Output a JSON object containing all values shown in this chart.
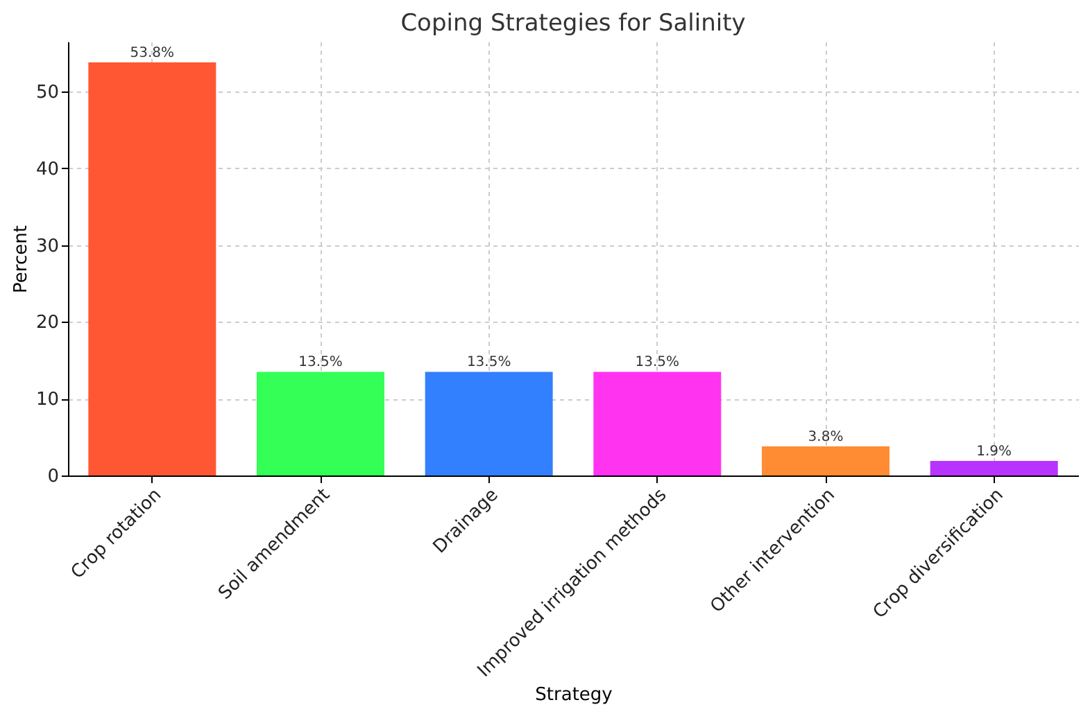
{
  "chart_data": {
    "type": "bar",
    "title": "Coping Strategies for Salinity",
    "xlabel": "Strategy",
    "ylabel": "Percent",
    "categories": [
      "Crop rotation",
      "Soil amendment",
      "Drainage",
      "Improved irrigation methods",
      "Other intervention",
      "Crop diversification"
    ],
    "values": [
      53.8,
      13.5,
      13.5,
      13.5,
      3.8,
      1.9
    ],
    "colors": [
      "#ff5733",
      "#33ff57",
      "#3380ff",
      "#ff33f0",
      "#ff8c33",
      "#b833ff"
    ],
    "value_labels": [
      "53.8%",
      "13.5%",
      "13.5%",
      "13.5%",
      "3.8%",
      "1.9%"
    ],
    "ylim": [
      0,
      56.5
    ],
    "yticks": [
      0,
      10,
      20,
      30,
      40,
      50
    ],
    "grid": true
  }
}
